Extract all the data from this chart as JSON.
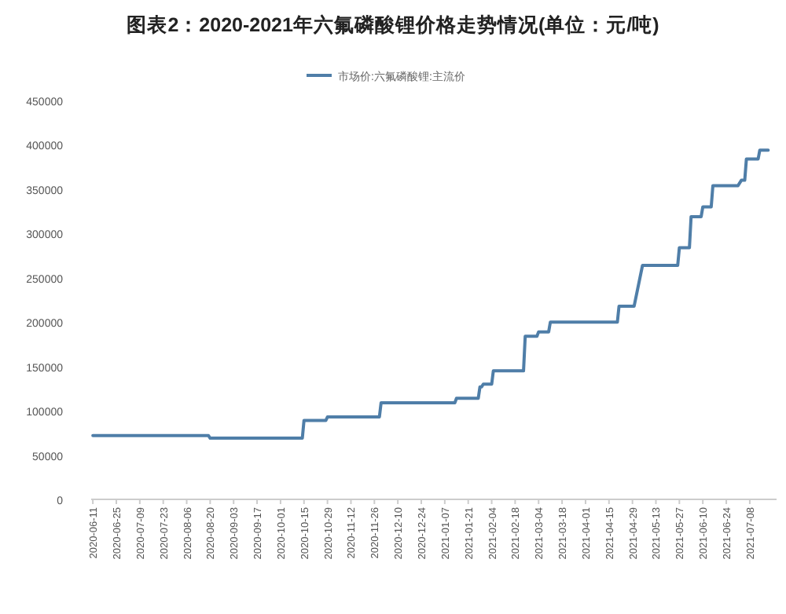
{
  "chart_data": {
    "type": "line",
    "title": "图表2：2020-2021年六氟磷酸锂价格走势情况(单位：元/吨)",
    "legend": "top",
    "grid": false,
    "xlim": [
      "2020-06-10",
      "2021-07-24"
    ],
    "xticks": [
      "2020-06-11",
      "2020-06-25",
      "2020-07-09",
      "2020-07-23",
      "2020-08-06",
      "2020-08-20",
      "2020-09-03",
      "2020-09-17",
      "2020-10-01",
      "2020-10-15",
      "2020-10-29",
      "2020-11-12",
      "2020-11-26",
      "2020-12-10",
      "2020-12-24",
      "2021-01-07",
      "2021-01-21",
      "2021-02-04",
      "2021-02-18",
      "2021-03-04",
      "2021-03-18",
      "2021-04-01",
      "2021-04-15",
      "2021-04-29",
      "2021-05-13",
      "2021-05-27",
      "2021-06-10",
      "2021-06-24",
      "2021-07-08"
    ],
    "ylim": [
      0,
      450000
    ],
    "yticks": [
      0,
      50000,
      100000,
      150000,
      200000,
      250000,
      300000,
      350000,
      400000,
      450000
    ],
    "series": [
      {
        "name": "市场价:六氟磷酸锂:主流价",
        "color": "#4f7ea8",
        "x": [
          "2020-06-11",
          "2020-08-19",
          "2020-08-20",
          "2020-10-14",
          "2020-10-15",
          "2020-10-28",
          "2020-10-29",
          "2020-11-29",
          "2020-11-30",
          "2021-01-13",
          "2021-01-14",
          "2021-01-27",
          "2021-01-28",
          "2021-01-29",
          "2021-01-30",
          "2021-02-04",
          "2021-02-05",
          "2021-02-23",
          "2021-02-24",
          "2021-03-03",
          "2021-03-04",
          "2021-03-10",
          "2021-03-11",
          "2021-04-20",
          "2021-04-21",
          "2021-04-30",
          "2021-05-05",
          "2021-05-26",
          "2021-05-27",
          "2021-06-02",
          "2021-06-03",
          "2021-06-09",
          "2021-06-10",
          "2021-06-15",
          "2021-06-16",
          "2021-07-01",
          "2021-07-03",
          "2021-07-05",
          "2021-07-06",
          "2021-07-13",
          "2021-07-14",
          "2021-07-19"
        ],
        "values": [
          72000,
          72000,
          69000,
          69000,
          89000,
          89000,
          93000,
          93000,
          109000,
          109000,
          114000,
          114000,
          127000,
          127000,
          130000,
          130000,
          145000,
          145000,
          184000,
          184000,
          189000,
          189000,
          200000,
          200000,
          218000,
          218000,
          264000,
          264000,
          284000,
          284000,
          319000,
          319000,
          330000,
          330000,
          354000,
          354000,
          360000,
          360000,
          384000,
          384000,
          394000,
          394000
        ]
      }
    ]
  }
}
